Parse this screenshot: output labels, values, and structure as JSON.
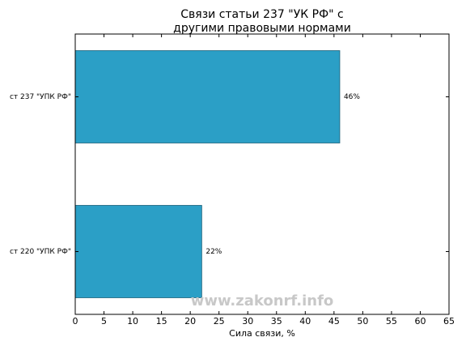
{
  "chart_data": {
    "type": "barh",
    "title": [
      "Связи статьи 237 \"УК РФ\" с",
      "другими правовыми нормами"
    ],
    "categories": [
      "ст 237 \"УПК РФ\"",
      "ст 220 \"УПК РФ\""
    ],
    "values": [
      46,
      22
    ],
    "value_labels": [
      "46%",
      "22%"
    ],
    "color": "#2b9fc6",
    "xlabel": "Сила связи, %",
    "xlim": [
      0,
      65
    ],
    "xticks": [
      0,
      5,
      10,
      15,
      20,
      25,
      30,
      35,
      40,
      45,
      50,
      55,
      60,
      65
    ],
    "watermark": "www.zakonrf.info"
  }
}
